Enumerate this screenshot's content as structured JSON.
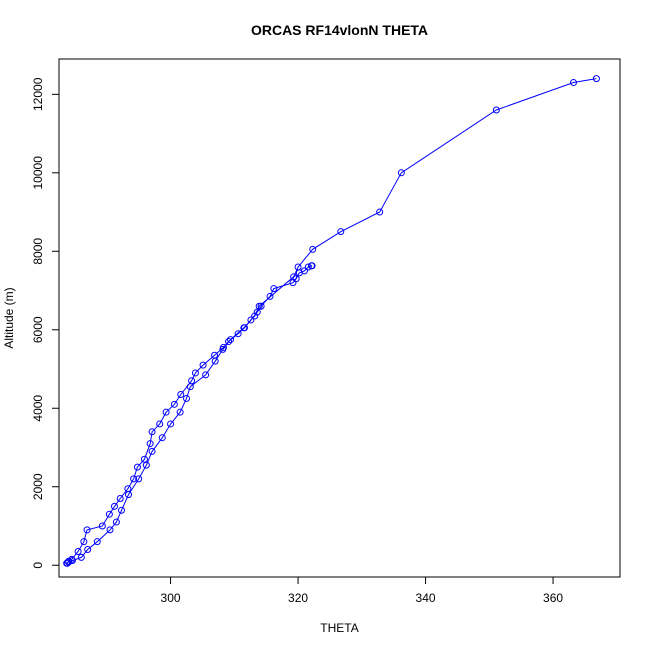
{
  "chart_data": {
    "type": "line",
    "title": "ORCAS RF14vlonN THETA",
    "xlabel": "THETA",
    "ylabel": "Altitude (m)",
    "xlim": [
      282.5,
      370.5
    ],
    "ylim": [
      -300,
      12900
    ],
    "xticks": [
      300,
      320,
      340,
      360
    ],
    "yticks": [
      0,
      2000,
      4000,
      6000,
      8000,
      10000,
      12000
    ],
    "grid": false,
    "legend": "none",
    "series_color": "#0000ff",
    "markers": "open-circle",
    "series": [
      {
        "x": [
          283.8,
          284.0,
          284.5,
          285.5,
          286.4,
          286.9,
          289.3,
          290.4,
          291.2,
          292.1,
          293.3,
          294.2,
          294.8,
          295.9,
          296.8,
          297.1,
          298.3,
          299.3,
          300.6,
          301.6,
          303.3,
          303.9,
          305.1,
          306.9,
          308.3,
          309.1,
          310.6,
          311.6,
          312.6,
          313.6,
          314.2,
          315.6,
          316.2,
          319.2,
          319.7,
          320.2,
          321.0,
          321.6,
          322.1,
          322.2
        ],
        "y": [
          50,
          100,
          150,
          350,
          600,
          900,
          1000,
          1300,
          1500,
          1700,
          1950,
          2200,
          2500,
          2700,
          3100,
          3400,
          3600,
          3900,
          4100,
          4350,
          4700,
          4900,
          5100,
          5350,
          5550,
          5700,
          5900,
          6050,
          6250,
          6450,
          6600,
          6850,
          7050,
          7200,
          7300,
          7450,
          7500,
          7600,
          7630,
          7630
        ]
      },
      {
        "x": [
          283.7,
          284.0,
          284.6,
          286.0,
          287.0,
          288.5,
          290.5,
          291.5,
          292.3,
          293.4,
          295.0,
          296.2,
          297.1,
          298.7,
          300.0,
          301.5,
          302.5,
          303.1,
          305.5,
          307.0,
          308.2,
          309.4,
          311.5,
          313.2,
          313.9,
          319.3,
          320.0,
          322.3,
          326.7,
          332.8,
          336.2,
          351.1,
          363.2,
          366.8
        ],
        "y": [
          50,
          80,
          120,
          200,
          400,
          600,
          900,
          1100,
          1400,
          1800,
          2200,
          2550,
          2900,
          3250,
          3600,
          3900,
          4250,
          4550,
          4850,
          5200,
          5500,
          5750,
          6050,
          6350,
          6600,
          7350,
          7600,
          8050,
          8500,
          9000,
          10000,
          11600,
          12300,
          12400
        ]
      }
    ]
  }
}
